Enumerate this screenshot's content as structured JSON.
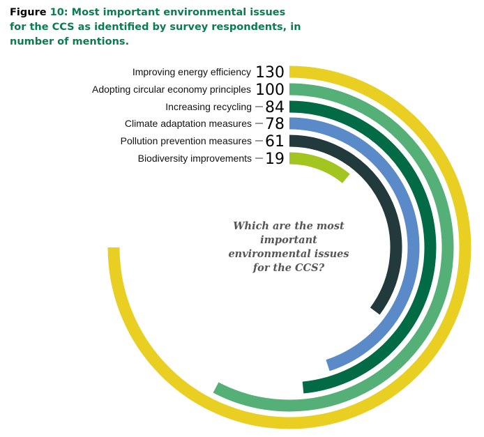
{
  "caption": {
    "figure_word": "Figure",
    "rest": "10: Most important environmental issues for the CCS as identified by survey respondents, in number of mentions."
  },
  "colors": {
    "caption_green": "#0a7d4f",
    "yellow": "#e8cf22",
    "light_green": "#55b077",
    "dark_green": "#006b45",
    "blue": "#5a8ac8",
    "dark_slate": "#223a3b",
    "lime": "#a2c520"
  },
  "chart_data": {
    "type": "radial bar",
    "title": "",
    "center_text": [
      "Which are the most",
      "important",
      "environmental issues",
      "for the CCS?"
    ],
    "categories": [
      "Improving energy efficiency",
      "Adopting circular economy principles",
      "Increasing recycling",
      "Climate adaptation measures",
      "Pollution prevention measures",
      "Biodiversity improvements"
    ],
    "values": [
      130,
      100,
      84,
      78,
      61,
      19
    ],
    "value_labels": [
      "130",
      "100",
      "84",
      "78",
      "61",
      "19"
    ],
    "series_colors": [
      "#e8cf22",
      "#55b077",
      "#006b45",
      "#5a8ac8",
      "#223a3b",
      "#a2c520"
    ]
  }
}
